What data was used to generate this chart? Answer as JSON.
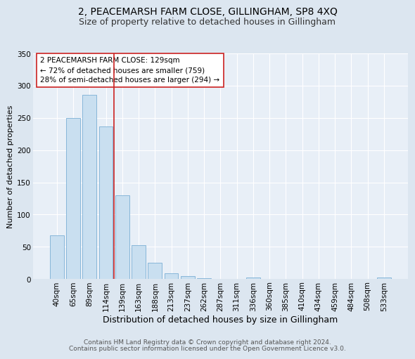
{
  "title1": "2, PEACEMARSH FARM CLOSE, GILLINGHAM, SP8 4XQ",
  "title2": "Size of property relative to detached houses in Gillingham",
  "xlabel": "Distribution of detached houses by size in Gillingham",
  "ylabel": "Number of detached properties",
  "footnote1": "Contains HM Land Registry data © Crown copyright and database right 2024.",
  "footnote2": "Contains public sector information licensed under the Open Government Licence v3.0.",
  "categories": [
    "40sqm",
    "65sqm",
    "89sqm",
    "114sqm",
    "139sqm",
    "163sqm",
    "188sqm",
    "213sqm",
    "237sqm",
    "262sqm",
    "287sqm",
    "311sqm",
    "336sqm",
    "360sqm",
    "385sqm",
    "410sqm",
    "434sqm",
    "459sqm",
    "484sqm",
    "508sqm",
    "533sqm"
  ],
  "values": [
    68,
    250,
    286,
    237,
    130,
    53,
    25,
    9,
    4,
    1,
    0,
    0,
    2,
    0,
    0,
    0,
    0,
    0,
    0,
    0,
    2
  ],
  "bar_color": "#c9dff0",
  "bar_edge_color": "#7aafd4",
  "vline_x": 3.5,
  "vline_color": "#cc2222",
  "annotation_text": "2 PEACEMARSH FARM CLOSE: 129sqm\n← 72% of detached houses are smaller (759)\n28% of semi-detached houses are larger (294) →",
  "annotation_box_color": "#ffffff",
  "annotation_box_edge_color": "#cc2222",
  "ylim": [
    0,
    350
  ],
  "background_color": "#dce6f0",
  "plot_background_color": "#e8eff7",
  "grid_color": "#ffffff",
  "title1_fontsize": 10,
  "title2_fontsize": 9,
  "xlabel_fontsize": 9,
  "ylabel_fontsize": 8,
  "tick_fontsize": 7.5,
  "annotation_fontsize": 7.5,
  "footnote_fontsize": 6.5
}
